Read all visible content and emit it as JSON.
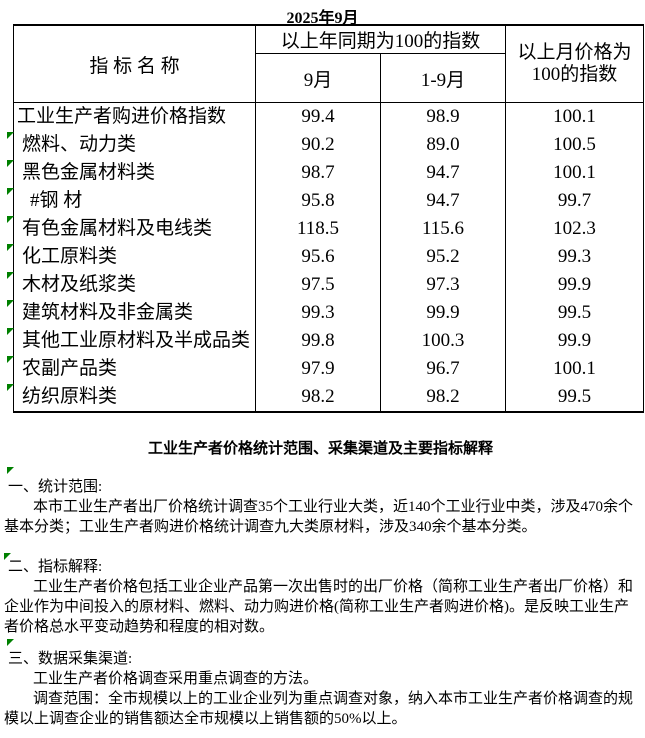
{
  "title": "2025年9月",
  "table": {
    "indicator_header": "指 标 名 称",
    "yoy_group_header": "以上年同期为100的指数",
    "sub_headers": [
      "9月",
      "1-9月"
    ],
    "mom_header": "以上月价格为100的指数",
    "rows": [
      {
        "label": "工业生产者购进价格指数",
        "indent": 0,
        "marker": false,
        "values": [
          "99.4",
          "98.9",
          "100.1"
        ]
      },
      {
        "label": "燃料、动力类",
        "indent": 1,
        "marker": true,
        "values": [
          "90.2",
          "89.0",
          "100.5"
        ]
      },
      {
        "label": "黑色金属材料类",
        "indent": 1,
        "marker": true,
        "values": [
          "98.7",
          "94.7",
          "100.1"
        ]
      },
      {
        "label": "#钢 材",
        "indent": 2,
        "marker": true,
        "values": [
          "95.8",
          "94.7",
          "99.7"
        ]
      },
      {
        "label": "有色金属材料及电线类",
        "indent": 1,
        "marker": true,
        "values": [
          "118.5",
          "115.6",
          "102.3"
        ]
      },
      {
        "label": "化工原料类",
        "indent": 1,
        "marker": true,
        "values": [
          "95.6",
          "95.2",
          "99.3"
        ]
      },
      {
        "label": "木材及纸浆类",
        "indent": 1,
        "marker": true,
        "values": [
          "97.5",
          "97.3",
          "99.9"
        ]
      },
      {
        "label": "建筑材料及非金属类",
        "indent": 1,
        "marker": true,
        "values": [
          "99.3",
          "99.9",
          "99.5"
        ]
      },
      {
        "label": "其他工业原材料及半成品类",
        "indent": 1,
        "marker": true,
        "values": [
          "99.8",
          "100.3",
          "99.9"
        ]
      },
      {
        "label": "农副产品类",
        "indent": 1,
        "marker": true,
        "values": [
          "97.9",
          "96.7",
          "100.1"
        ]
      },
      {
        "label": "纺织原料类",
        "indent": 1,
        "marker": true,
        "values": [
          "98.2",
          "98.2",
          "99.5"
        ]
      }
    ]
  },
  "notes": {
    "heading": "工业生产者价格统计范围、采集渠道及主要指标解释",
    "sections": [
      {
        "title": "一、统计范围:",
        "marker_style": "above",
        "lines": [
          {
            "text": "本市工业生产者出厂价格统计调查35个工业行业大类，近140个工业行业中类，涉及470余个",
            "indent": true
          },
          {
            "text": "基本分类；工业生产者购进价格统计调查九大类原材料，涉及340余个基本分类。",
            "indent": false
          }
        ]
      },
      {
        "title": "二、指标解释:",
        "marker_style": "inline",
        "lines": [
          {
            "text": "工业生产者价格包括工业企业产品第一次出售时的出厂价格（简称工业生产者出厂价格）和",
            "indent": true
          },
          {
            "text": "企业作为中间投入的原材料、燃料、动力购进价格(简称工业生产者购进价格)。是反映工业生产",
            "indent": false
          },
          {
            "text": "者价格总水平变动趋势和程度的相对数。",
            "indent": false
          }
        ]
      },
      {
        "title": "三、数据采集渠道:",
        "marker_style": "above",
        "lines": [
          {
            "text": "工业生产者价格调查采用重点调查的方法。",
            "indent": true
          },
          {
            "text": "调查范围：全市规模以上的工业企业列为重点调查对象，纳入本市工业生产者价格调查的规",
            "indent": true
          },
          {
            "text": "模以上调查企业的销售额达全市规模以上销售额的50%以上。",
            "indent": false
          }
        ]
      }
    ]
  },
  "colors": {
    "marker_green": "#008000",
    "border_black": "#000000",
    "background": "#ffffff"
  }
}
